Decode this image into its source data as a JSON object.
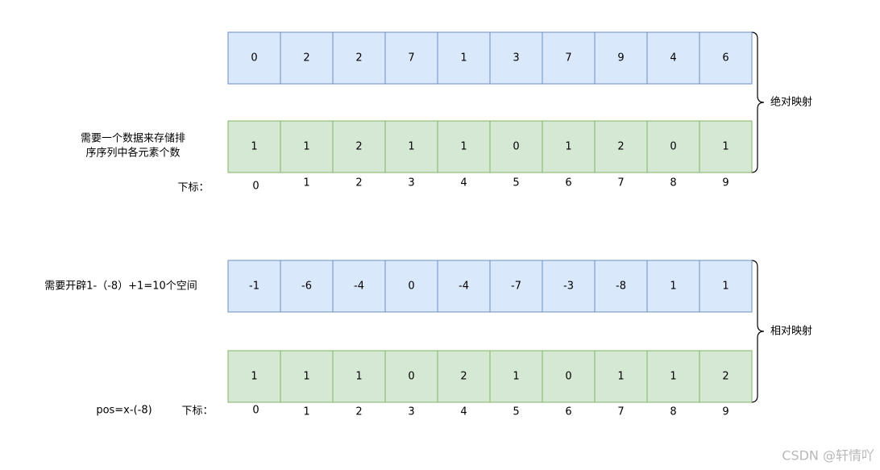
{
  "sections": [
    {
      "top_row": [
        "0",
        "2",
        "2",
        "7",
        "1",
        "3",
        "7",
        "9",
        "4",
        "6"
      ],
      "bottom_row": [
        "1",
        "1",
        "2",
        "1",
        "1",
        "0",
        "1",
        "2",
        "0",
        "1"
      ],
      "indices": [
        "0",
        "1",
        "2",
        "3",
        "4",
        "5",
        "6",
        "7",
        "8",
        "9"
      ],
      "index_label": "下标：",
      "note_lines": [
        "需要一个数据来存储排",
        "序序列中各元素个数"
      ],
      "brace_label": "绝对映射"
    },
    {
      "top_row": [
        "-1",
        "-6",
        "-4",
        "0",
        "-4",
        "-7",
        "-3",
        "-8",
        "1",
        "1"
      ],
      "bottom_row": [
        "1",
        "1",
        "1",
        "0",
        "2",
        "1",
        "0",
        "1",
        "1",
        "2"
      ],
      "indices": [
        "0",
        "1",
        "2",
        "3",
        "4",
        "5",
        "6",
        "7",
        "8",
        "9"
      ],
      "index_label": "下标：",
      "note_lines": [
        "需要开辟1-（-8）+1=10个空间"
      ],
      "formula": "pos=x-(-8)",
      "brace_label": "相对映射"
    }
  ],
  "watermark": "CSDN @轩情吖"
}
